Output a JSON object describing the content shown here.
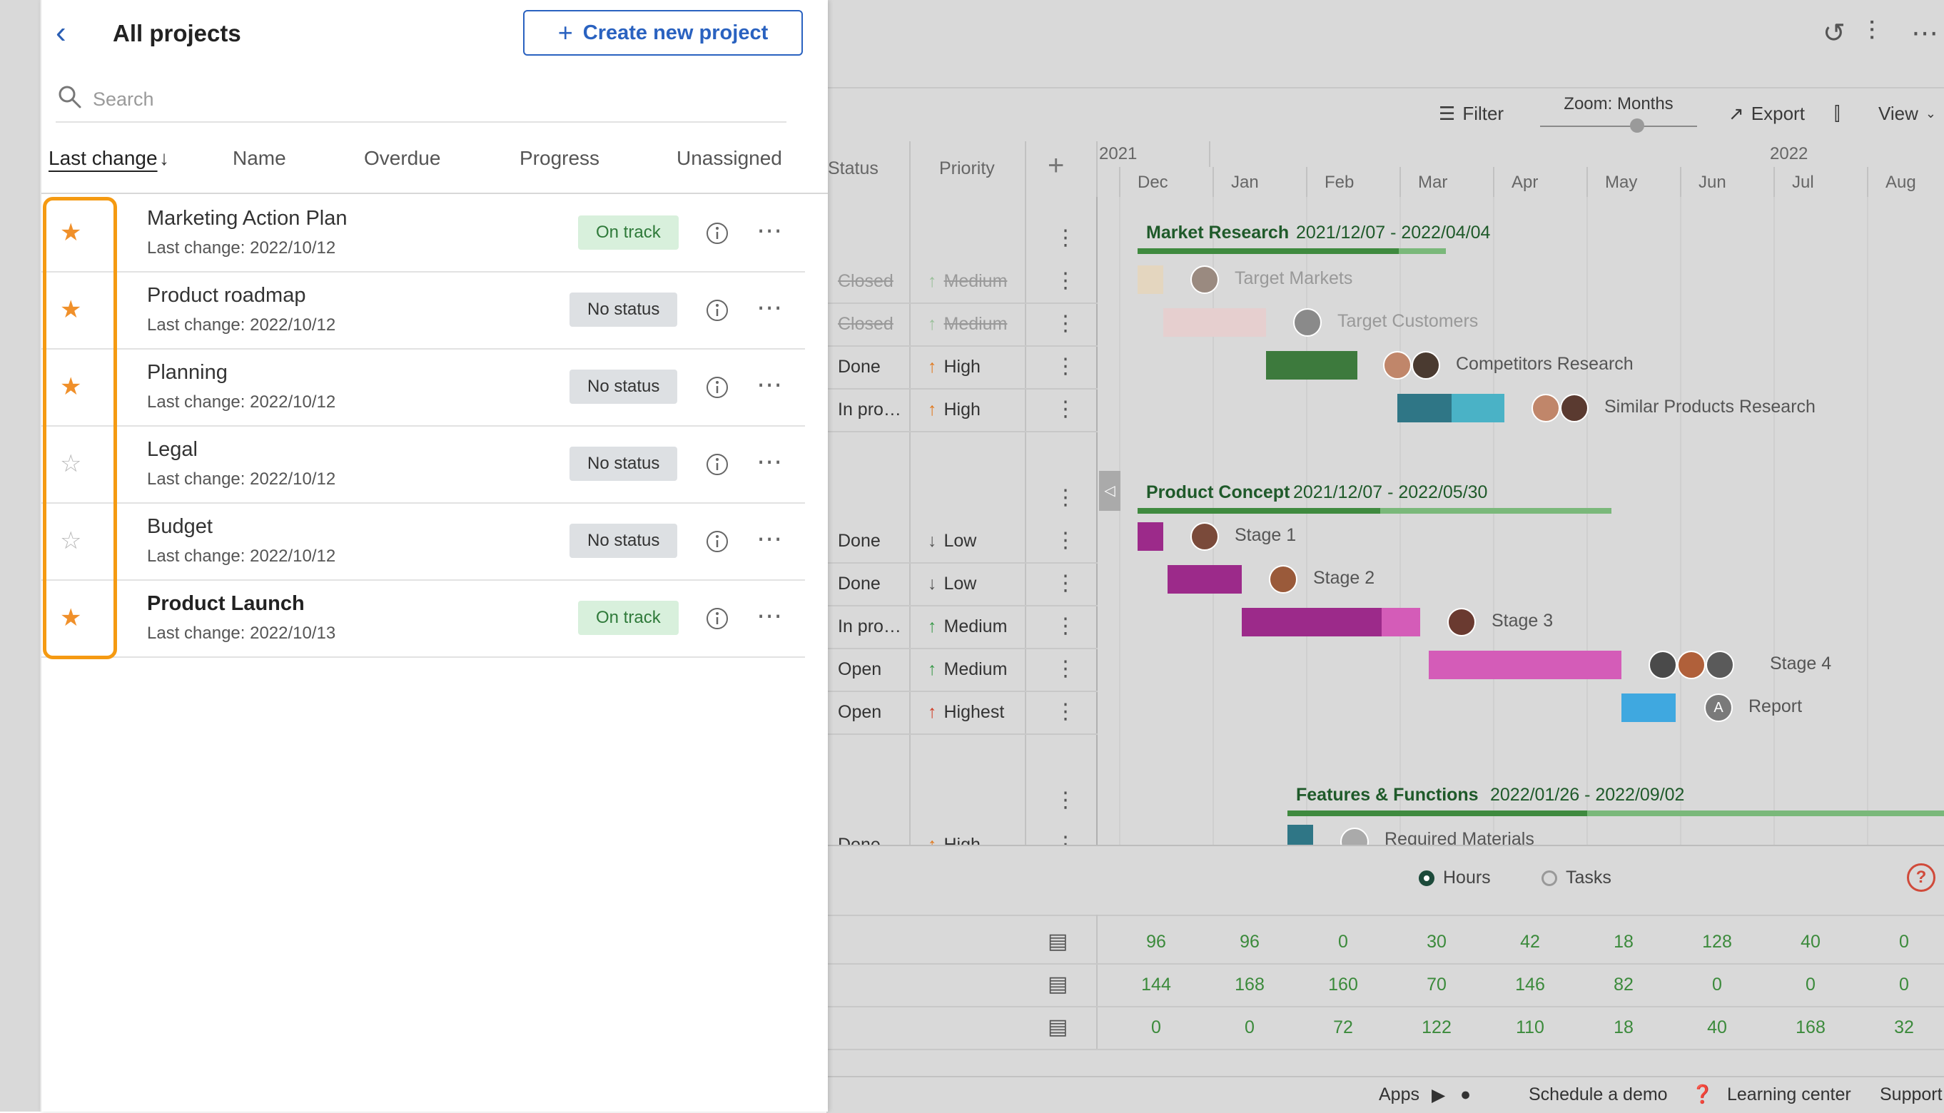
{
  "panel": {
    "title": "All projects",
    "create_button": "Create new project",
    "search_placeholder": "Search",
    "sort_columns": [
      {
        "label": "Last change",
        "active": true
      },
      {
        "label": "Name"
      },
      {
        "label": "Overdue"
      },
      {
        "label": "Progress"
      },
      {
        "label": "Unassigned"
      }
    ],
    "projects": [
      {
        "name": "Marketing Action Plan",
        "last_change": "Last change: 2022/10/12",
        "status": "On track",
        "starred": true
      },
      {
        "name": "Product roadmap",
        "last_change": "Last change: 2022/10/12",
        "status": "No status",
        "starred": true
      },
      {
        "name": "Planning",
        "last_change": "Last change: 2022/10/12",
        "status": "No status",
        "starred": true
      },
      {
        "name": "Legal",
        "last_change": "Last change: 2022/10/12",
        "status": "No status",
        "starred": false
      },
      {
        "name": "Budget",
        "last_change": "Last change: 2022/10/12",
        "status": "No status",
        "starred": false
      },
      {
        "name": "Product Launch",
        "last_change": "Last change: 2022/10/13",
        "status": "On track",
        "starred": true
      }
    ],
    "colors": {
      "accent": "#2a62c0",
      "star": "#f0902a",
      "highlight": "#f59a12"
    }
  },
  "gantt": {
    "toolbar": {
      "filter": "Filter",
      "zoom": "Zoom: Months",
      "export": "Export",
      "view": "View"
    },
    "columns": {
      "status": "Status",
      "priority": "Priority"
    },
    "years": [
      "2021",
      "2022"
    ],
    "months": [
      "Dec",
      "Jan",
      "Feb",
      "Mar",
      "Apr",
      "May",
      "Jun",
      "Jul",
      "Aug"
    ],
    "groups": [
      {
        "title": "Market Research",
        "dates": "2021/12/07 - 2022/04/04"
      },
      {
        "title": "Product Concept",
        "dates": "2021/12/07 - 2022/05/30"
      },
      {
        "title": "Features & Functions",
        "dates": "2022/01/26 - 2022/09/02"
      }
    ],
    "rows": [
      {
        "status": "Closed",
        "priority": "Medium",
        "task": "Target Markets"
      },
      {
        "status": "Closed",
        "priority": "Medium",
        "task": "Target Customers"
      },
      {
        "status": "Done",
        "priority": "High",
        "task": "Competitors Research"
      },
      {
        "status": "In pro…",
        "priority": "High",
        "task": "Similar Products Research"
      },
      {
        "status": "Done",
        "priority": "Low",
        "task": "Stage 1"
      },
      {
        "status": "Done",
        "priority": "Low",
        "task": "Stage 2"
      },
      {
        "status": "In pro…",
        "priority": "Medium",
        "task": "Stage 3"
      },
      {
        "status": "Open",
        "priority": "Medium",
        "task": "Stage 4"
      },
      {
        "status": "Open",
        "priority": "Highest",
        "task": "Report"
      },
      {
        "status": "Done",
        "priority": "High",
        "task": "Required Materials"
      }
    ],
    "avatar_initial": "A",
    "bottom": {
      "radio_hours": "Hours",
      "radio_tasks": "Tasks",
      "rows": [
        [
          "96",
          "96",
          "0",
          "30",
          "42",
          "18",
          "128",
          "40",
          "0"
        ],
        [
          "144",
          "168",
          "160",
          "70",
          "146",
          "82",
          "0",
          "0",
          "0"
        ],
        [
          "0",
          "0",
          "72",
          "122",
          "110",
          "18",
          "40",
          "168",
          "32"
        ]
      ]
    },
    "footer": {
      "apps": "Apps",
      "demo": "Schedule a demo",
      "learning": "Learning center",
      "support": "Support"
    }
  }
}
